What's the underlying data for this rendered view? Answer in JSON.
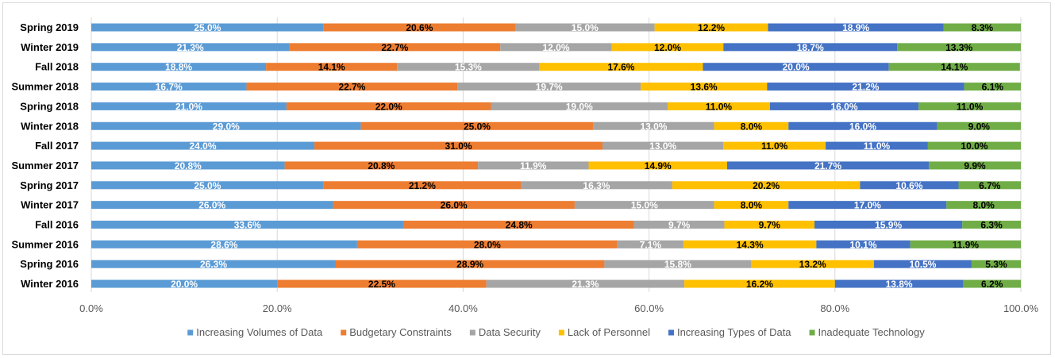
{
  "chart_data": {
    "type": "bar",
    "orientation": "horizontal",
    "stacked": "percent",
    "title": "",
    "xlabel": "",
    "ylabel": "",
    "xlim": [
      0,
      100
    ],
    "x_ticks": [
      "0.0%",
      "20.0%",
      "40.0%",
      "60.0%",
      "80.0%",
      "100.0%"
    ],
    "legend_position": "bottom",
    "grid": "vertical major gridlines",
    "categories": [
      "Spring 2019",
      "Winter 2019",
      "Fall 2018",
      "Summer 2018",
      "Spring 2018",
      "Winter 2018",
      "Fall 2017",
      "Summer 2017",
      "Spring 2017",
      "Winter 2017",
      "Fall 2016",
      "Summer 2016",
      "Spring 2016",
      "Winter 2016"
    ],
    "series": [
      {
        "name": "Increasing Volumes of Data",
        "color": "#5b9bd5",
        "label_color": "#ffffff",
        "values": [
          25.0,
          21.3,
          18.8,
          16.7,
          21.0,
          29.0,
          24.0,
          20.8,
          25.0,
          26.0,
          33.6,
          28.6,
          26.3,
          20.0
        ],
        "labels": [
          "25.0%",
          "21.3%",
          "18.8%",
          "16.7%",
          "21.0%",
          "29.0%",
          "24.0%",
          "20.8%",
          "25.0%",
          "26.0%",
          "33.6%",
          "28.6%",
          "26.3%",
          "20.0%"
        ]
      },
      {
        "name": "Budgetary Constraints",
        "color": "#ed7d31",
        "label_color": "#000000",
        "values": [
          20.6,
          22.7,
          14.1,
          22.7,
          22.0,
          25.0,
          31.0,
          20.8,
          21.2,
          26.0,
          24.8,
          28.0,
          28.9,
          22.5
        ],
        "labels": [
          "20.6%",
          "22.7%",
          "14.1%",
          "22.7%",
          "22.0%",
          "25.0%",
          "31.0%",
          "20.8%",
          "21.2%",
          "26.0%",
          "24.8%",
          "28.0%",
          "28.9%",
          "22.5%"
        ]
      },
      {
        "name": "Data Security",
        "color": "#a5a5a5",
        "label_color": "#ffffff",
        "values": [
          15.0,
          12.0,
          15.3,
          19.7,
          19.0,
          13.0,
          13.0,
          11.9,
          16.3,
          15.0,
          9.7,
          7.1,
          15.8,
          21.3
        ],
        "labels": [
          "15.0%",
          "12.0%",
          "15.3%",
          "19.7%",
          "19.0%",
          "13.0%",
          "13.0%",
          "11.9%",
          "16.3%",
          "15.0%",
          "9.7%",
          "7.1%",
          "15.8%",
          "21.3%"
        ]
      },
      {
        "name": "Lack of Personnel",
        "color": "#ffc000",
        "label_color": "#000000",
        "values": [
          12.2,
          12.0,
          17.6,
          13.6,
          11.0,
          8.0,
          11.0,
          14.9,
          20.2,
          8.0,
          9.7,
          14.3,
          13.2,
          16.2
        ],
        "labels": [
          "12.2%",
          "12.0%",
          "17.6%",
          "13.6%",
          "11.0%",
          "8.0%",
          "11.0%",
          "14.9%",
          "20.2%",
          "8.0%",
          "9.7%",
          "14.3%",
          "13.2%",
          "16.2%"
        ]
      },
      {
        "name": "Increasing Types of Data",
        "color": "#4472c4",
        "label_color": "#ffffff",
        "values": [
          18.9,
          18.7,
          20.0,
          21.2,
          16.0,
          16.0,
          11.0,
          21.7,
          10.6,
          17.0,
          15.9,
          10.1,
          10.5,
          13.8
        ],
        "labels": [
          "18.9%",
          "18.7%",
          "20.0%",
          "21.2%",
          "16.0%",
          "16.0%",
          "11.0%",
          "21.7%",
          "10.6%",
          "17.0%",
          "15.9%",
          "10.1%",
          "10.5%",
          "13.8%"
        ]
      },
      {
        "name": "Inadequate Technology",
        "color": "#70ad47",
        "label_color": "#000000",
        "values": [
          8.3,
          13.3,
          14.1,
          6.1,
          11.0,
          9.0,
          10.0,
          9.9,
          6.7,
          8.0,
          6.3,
          11.9,
          5.3,
          6.2
        ],
        "labels": [
          "8.3%",
          "13.3%",
          "14.1%",
          "6.1%",
          "11.0%",
          "9.0%",
          "10.0%",
          "9.9%",
          "6.7%",
          "8.0%",
          "6.3%",
          "11.9%",
          "5.3%",
          "6.2%"
        ]
      }
    ]
  }
}
